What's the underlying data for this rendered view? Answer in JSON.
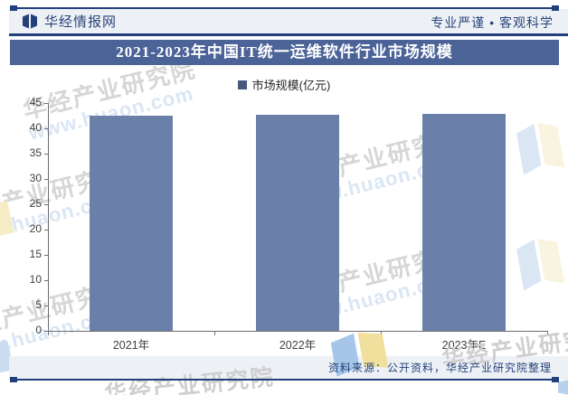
{
  "header": {
    "brand": "华经情报网",
    "slogan": "专业严谨 • 客观科学"
  },
  "title_bar": {
    "title": "2021-2023年中国IT统一运维软件行业市场规模"
  },
  "legend": {
    "label": "市场规模(亿元)"
  },
  "chart_data": {
    "type": "bar",
    "title": "2021-2023年中国IT统一运维软件行业市场规模",
    "categories": [
      "2021年",
      "2022年",
      "2023年E"
    ],
    "series": [
      {
        "name": "市场规模(亿元)",
        "values": [
          42.5,
          42.6,
          42.8
        ]
      }
    ],
    "xlabel": "",
    "ylabel": "",
    "ylim": [
      0,
      45
    ],
    "ytick_step": 5,
    "grid": false,
    "legend_position": "top",
    "bar_color": "#6b80a8"
  },
  "footer": {
    "source": "资料来源：公开资料，华经产业研究院整理"
  },
  "watermark": {
    "text": "华经产业研究院",
    "url": "www.huaon.com"
  },
  "colors": {
    "navy": "#21407b",
    "title_bar_bg": "#4c6398",
    "bar": "#6b80a8",
    "band_bg": "#edf1f6",
    "legend_swatch": "#47587e",
    "axis": "#6e6e6e"
  }
}
